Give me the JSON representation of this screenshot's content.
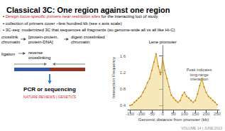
{
  "chart_data": {
    "type": "line",
    "title": "Classical 3C: One region against one region",
    "x_label": "Genomic distance from promoter (kb)",
    "y_label": "Interaction Frequency",
    "x": [
      -150,
      -140,
      -130,
      -120,
      -110,
      -100,
      -90,
      -80,
      -70,
      -60,
      -50,
      -40,
      -30,
      -20,
      -10,
      0,
      10,
      20,
      30,
      40,
      50,
      60,
      70,
      80,
      90,
      100,
      110,
      120,
      130,
      140,
      150,
      160,
      170,
      180,
      190,
      200,
      210,
      220,
      230,
      240,
      250
    ],
    "values": [
      0.4,
      0.42,
      0.48,
      0.52,
      0.58,
      0.62,
      0.72,
      0.82,
      0.95,
      1.05,
      1.25,
      1.45,
      1.65,
      1.35,
      1.15,
      1.55,
      1.25,
      1.05,
      0.85,
      0.65,
      0.58,
      0.52,
      0.48,
      0.52,
      0.65,
      0.72,
      0.62,
      0.58,
      0.52,
      0.48,
      0.52,
      0.68,
      0.88,
      1.05,
      0.85,
      0.72,
      0.62,
      0.58,
      0.52,
      0.48,
      0.42
    ],
    "color": "#c8860a",
    "marker": "circle",
    "xlim": [
      -160,
      260
    ],
    "xticks": [
      -150,
      -100,
      -50,
      0,
      50,
      100,
      150,
      200,
      250
    ],
    "ylim": [
      0.3,
      1.85
    ],
    "yticks": [
      0.4,
      0.8,
      1.2,
      1.6
    ],
    "grid": false,
    "annotations": [
      {
        "text": "• "
      },
      {
        "text": "Design locus-specific primers near restriction sites",
        "color": "#cc1111"
      },
      {
        "text": " for the interacting loci of study"
      },
      {
        "text": "• collection of primers cover ~few hundred kb (see x axis scale)"
      },
      {
        "text": "• 3C-seq: modernized 3C that sequences all fragments (so genome-wide all vs all like Hi-C)"
      },
      {
        "text": "crosslink\nchromatin"
      },
      {
        "text": "[protein-protein,\nprotein-DNA]"
      },
      {
        "text": "digest crosslinked\nchromatin"
      },
      {
        "text": "ligation"
      },
      {
        "text": "reverse\ncrosslinking"
      },
      {
        "text": "PCR or sequencing"
      },
      {
        "text": "NATURE REVIEWS | GENETICS",
        "color": "#cc3333"
      },
      {
        "text": "Lene promoter",
        "x": 0
      },
      {
        "text": "Peak indicates\nlong-range\ninteraction",
        "x": 168,
        "y": 1.15
      },
      {
        "text": "VOLUME 14 | JUNE 2013"
      }
    ]
  }
}
